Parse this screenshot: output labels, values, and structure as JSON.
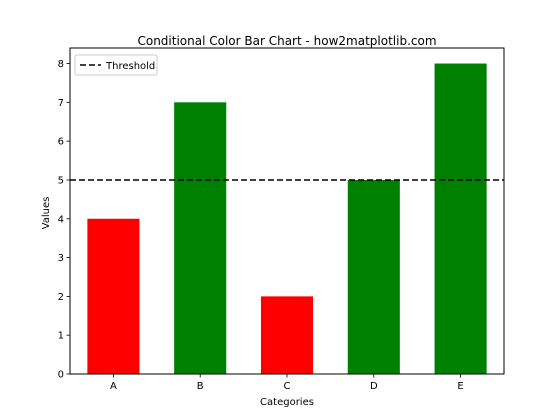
{
  "chart_data": {
    "type": "bar",
    "title": "Conditional Color Bar Chart - how2matplotlib.com",
    "xlabel": "Categories",
    "ylabel": "Values",
    "categories": [
      "A",
      "B",
      "C",
      "D",
      "E"
    ],
    "values": [
      4,
      7,
      2,
      5,
      8
    ],
    "bar_colors": [
      "#ff0000",
      "#008000",
      "#ff0000",
      "#008000",
      "#008000"
    ],
    "ylim": [
      0,
      8.4
    ],
    "yticks": [
      0,
      1,
      2,
      3,
      4,
      5,
      6,
      7,
      8
    ],
    "threshold": {
      "value": 5,
      "label": "Threshold",
      "color": "#000000",
      "style": "dashed"
    },
    "legend": {
      "location": "top-left"
    },
    "grid": false
  }
}
